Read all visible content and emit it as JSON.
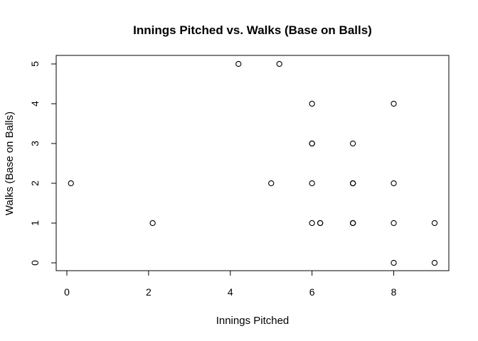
{
  "chart_data": {
    "type": "scatter",
    "title": "Innings Pitched vs. Walks (Base on Balls)",
    "xlabel": "Innings Pitched",
    "ylabel": "Walks (Base on Balls)",
    "xlim": [
      0,
      9
    ],
    "ylim": [
      0,
      5
    ],
    "xticks": [
      0,
      2,
      4,
      6,
      8
    ],
    "yticks": [
      0,
      1,
      2,
      3,
      4,
      5
    ],
    "grid": false,
    "marker": "open-circle",
    "marker_color": "#000000",
    "points": [
      {
        "x": 0.1,
        "y": 2
      },
      {
        "x": 2.1,
        "y": 1
      },
      {
        "x": 4.2,
        "y": 5
      },
      {
        "x": 5.2,
        "y": 5
      },
      {
        "x": 5.0,
        "y": 2
      },
      {
        "x": 6.0,
        "y": 4
      },
      {
        "x": 6.0,
        "y": 3
      },
      {
        "x": 6.0,
        "y": 3
      },
      {
        "x": 6.0,
        "y": 2
      },
      {
        "x": 6.0,
        "y": 1
      },
      {
        "x": 6.2,
        "y": 1
      },
      {
        "x": 6.2,
        "y": 1
      },
      {
        "x": 7.0,
        "y": 3
      },
      {
        "x": 7.0,
        "y": 2
      },
      {
        "x": 7.0,
        "y": 2
      },
      {
        "x": 7.0,
        "y": 2
      },
      {
        "x": 7.0,
        "y": 1
      },
      {
        "x": 7.0,
        "y": 1
      },
      {
        "x": 7.0,
        "y": 1
      },
      {
        "x": 8.0,
        "y": 4
      },
      {
        "x": 8.0,
        "y": 2
      },
      {
        "x": 8.0,
        "y": 1
      },
      {
        "x": 8.0,
        "y": 0
      },
      {
        "x": 9.0,
        "y": 1
      },
      {
        "x": 9.0,
        "y": 0
      }
    ]
  }
}
